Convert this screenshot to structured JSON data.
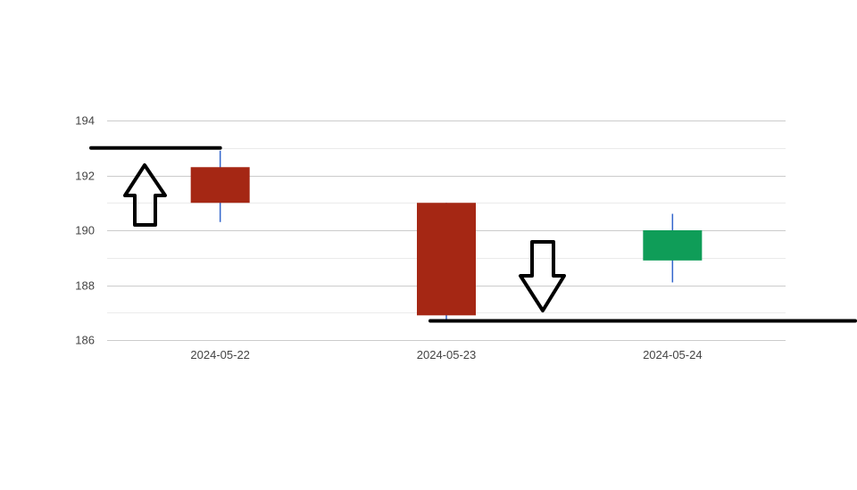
{
  "chart_data": {
    "type": "candlestick",
    "title": "",
    "xlabel": "",
    "ylabel": "",
    "categories": [
      "2024-05-22",
      "2024-05-23",
      "2024-05-24"
    ],
    "candles": [
      {
        "date": "2024-05-22",
        "open": 192.3,
        "high": 192.9,
        "low": 190.3,
        "close": 191.0
      },
      {
        "date": "2024-05-23",
        "open": 191.0,
        "high": 191.0,
        "low": 186.7,
        "close": 186.9
      },
      {
        "date": "2024-05-24",
        "open": 188.9,
        "high": 190.6,
        "low": 188.1,
        "close": 190.0
      }
    ],
    "ylim": [
      186,
      194
    ],
    "yticks": [
      186,
      188,
      190,
      192,
      194
    ],
    "grid": true,
    "colors": {
      "down": "#a52714",
      "up": "#0f9d58",
      "wick": "#3366cc",
      "gridline": "#cccccc",
      "minor_gridline": "#ebebeb",
      "annotation": "#000000"
    },
    "annotations": [
      {
        "type": "horizontal-line",
        "level": 193.0,
        "from": "2024-05-22",
        "side": "left",
        "note_icon": "arrow-up-icon"
      },
      {
        "type": "horizontal-line",
        "level": 186.7,
        "from": "2024-05-23",
        "side": "right",
        "note_icon": "arrow-down-icon"
      }
    ]
  }
}
